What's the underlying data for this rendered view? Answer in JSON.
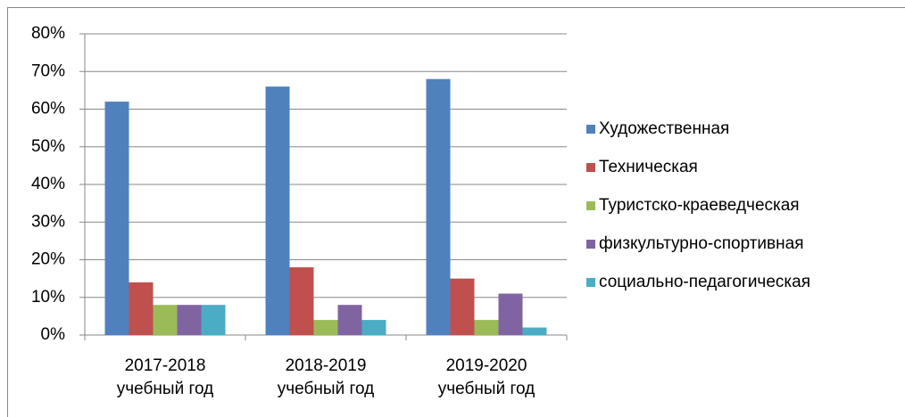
{
  "chart_data": {
    "type": "bar",
    "categories": [
      "2017-2018\nучебный год",
      "2018-2019\nучебный год",
      "2019-2020\nучебный год"
    ],
    "series": [
      {
        "name": "Художественная",
        "color": "#4f81bd",
        "values": [
          62,
          66,
          68
        ]
      },
      {
        "name": "Техническая",
        "color": "#c0504d",
        "values": [
          14,
          18,
          15
        ]
      },
      {
        "name": "Туристско-краеведческая",
        "color": "#9bbb59",
        "values": [
          8,
          4,
          4
        ]
      },
      {
        "name": "физкультурно-спортивная",
        "color": "#8064a2",
        "values": [
          8,
          8,
          11
        ]
      },
      {
        "name": "социально-педагогическая",
        "color": "#4bacc6",
        "values": [
          8,
          4,
          2
        ]
      }
    ],
    "ylim": [
      0,
      80
    ],
    "yticks": [
      {
        "value": 0,
        "label": "0%"
      },
      {
        "value": 10,
        "label": "10%"
      },
      {
        "value": 20,
        "label": "20%"
      },
      {
        "value": 30,
        "label": "30%"
      },
      {
        "value": 40,
        "label": "40%"
      },
      {
        "value": 50,
        "label": "50%"
      },
      {
        "value": 60,
        "label": "60%"
      },
      {
        "value": 70,
        "label": "70%"
      },
      {
        "value": 80,
        "label": "80%"
      }
    ],
    "grid": true,
    "legend": "right"
  }
}
